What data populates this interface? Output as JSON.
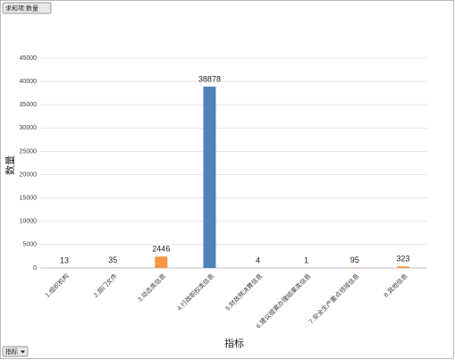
{
  "chart_data": {
    "type": "bar",
    "field_button": "求和项:数量",
    "filter_button": "指标",
    "y_label": "数量",
    "x_label": "指标",
    "categories": [
      "1.组织机构",
      "2.部门文件",
      "3.动态类信息",
      "4.行政职权类信息",
      "5.财政预决算信息",
      "6.建议提案办理结果类信息",
      "7.安全生产重点领域信息",
      "8.其他信息"
    ],
    "values": [
      13,
      35,
      2446,
      38878,
      4,
      1,
      95,
      323
    ],
    "colors": [
      "#4f81bd",
      "#4f81bd",
      "#f79646",
      "#4f81bd",
      "#4f81bd",
      "#4f81bd",
      "#f79646",
      "#f79646"
    ],
    "ylim": [
      0,
      45000
    ],
    "yticks": [
      0,
      5000,
      10000,
      15000,
      20000,
      25000,
      30000,
      35000,
      40000,
      45000
    ],
    "grid": true
  }
}
